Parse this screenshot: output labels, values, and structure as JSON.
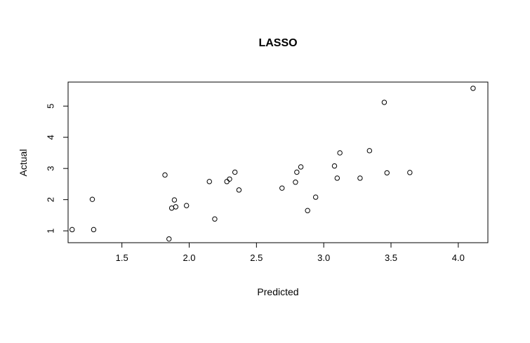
{
  "chart_data": {
    "type": "scatter",
    "title": "LASSO",
    "xlabel": "Predicted",
    "ylabel": "Actual",
    "xlim": [
      1.1,
      4.22
    ],
    "ylim": [
      0.62,
      5.77
    ],
    "x_ticks": [
      1.5,
      2.0,
      2.5,
      3.0,
      3.5,
      4.0
    ],
    "x_tick_labels": [
      "1.5",
      "2.0",
      "2.5",
      "3.0",
      "3.5",
      "4.0"
    ],
    "y_ticks": [
      1,
      2,
      3,
      4,
      5
    ],
    "y_tick_labels": [
      "1",
      "2",
      "3",
      "4",
      "5"
    ],
    "grid": false,
    "marker": "open-circle",
    "colors": {
      "axis": "#000000",
      "points": "#000000",
      "background": "#ffffff"
    },
    "points": [
      {
        "x": 1.13,
        "y": 1.04
      },
      {
        "x": 1.28,
        "y": 2.01
      },
      {
        "x": 1.29,
        "y": 1.04
      },
      {
        "x": 1.82,
        "y": 2.79
      },
      {
        "x": 1.85,
        "y": 0.74
      },
      {
        "x": 1.87,
        "y": 1.73
      },
      {
        "x": 1.89,
        "y": 1.99
      },
      {
        "x": 1.9,
        "y": 1.77
      },
      {
        "x": 1.98,
        "y": 1.81
      },
      {
        "x": 2.15,
        "y": 2.58
      },
      {
        "x": 2.19,
        "y": 1.38
      },
      {
        "x": 2.28,
        "y": 2.58
      },
      {
        "x": 2.3,
        "y": 2.66
      },
      {
        "x": 2.34,
        "y": 2.88
      },
      {
        "x": 2.37,
        "y": 2.31
      },
      {
        "x": 2.69,
        "y": 2.37
      },
      {
        "x": 2.79,
        "y": 2.56
      },
      {
        "x": 2.8,
        "y": 2.88
      },
      {
        "x": 2.83,
        "y": 3.05
      },
      {
        "x": 2.88,
        "y": 1.65
      },
      {
        "x": 2.94,
        "y": 2.08
      },
      {
        "x": 3.08,
        "y": 3.08
      },
      {
        "x": 3.1,
        "y": 2.69
      },
      {
        "x": 3.12,
        "y": 3.5
      },
      {
        "x": 3.27,
        "y": 2.69
      },
      {
        "x": 3.34,
        "y": 3.57
      },
      {
        "x": 3.45,
        "y": 5.12
      },
      {
        "x": 3.47,
        "y": 2.86
      },
      {
        "x": 3.64,
        "y": 2.87
      },
      {
        "x": 4.11,
        "y": 5.57
      }
    ]
  }
}
